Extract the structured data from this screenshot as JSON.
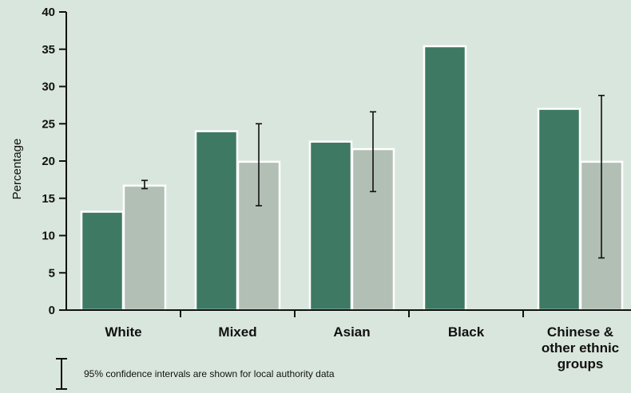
{
  "chart_data": {
    "type": "bar",
    "title": "",
    "xlabel": "",
    "ylabel": "Percentage",
    "ylim": [
      0,
      40
    ],
    "yticks": [
      0,
      5,
      10,
      15,
      20,
      25,
      30,
      35,
      40
    ],
    "categories": [
      [
        "White"
      ],
      [
        "Mixed"
      ],
      [
        "Asian"
      ],
      [
        "Black"
      ],
      [
        "Chinese &",
        "other ethnic",
        "groups"
      ]
    ],
    "series": [
      {
        "values": [
          13.2,
          24.0,
          22.6,
          35.4,
          27.0
        ],
        "color": "#3e7a63"
      },
      {
        "values": [
          16.7,
          19.9,
          21.6,
          null,
          19.9
        ],
        "error_low": [
          16.3,
          14.0,
          15.9,
          null,
          7.0
        ],
        "error_high": [
          17.4,
          25.0,
          26.6,
          null,
          28.8
        ],
        "color": "#b2bfb4"
      }
    ],
    "grid": false,
    "background": "#d9e6dd",
    "note": "95% confidence intervals are shown for local authority data"
  }
}
